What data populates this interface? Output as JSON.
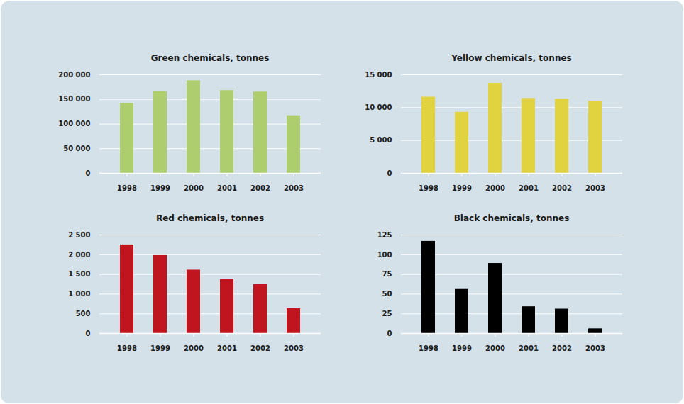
{
  "chart_data": [
    {
      "type": "bar",
      "title": "Green chemicals, tonnes",
      "categories": [
        "1998",
        "1999",
        "2000",
        "2001",
        "2002",
        "2003"
      ],
      "values": [
        142000,
        166000,
        188000,
        168000,
        165000,
        117000
      ],
      "color": "#aecd6e",
      "ylim": [
        0,
        200000
      ],
      "yticks": [
        0,
        {
          "value": 50000,
          "label": "50 000"
        },
        {
          "value": 100000,
          "label": "100 000"
        },
        {
          "value": 150000,
          "label": "150 000"
        },
        {
          "value": 200000,
          "label": "200 000"
        }
      ],
      "grid": true
    },
    {
      "type": "bar",
      "title": "Yellow chemicals, tonnes",
      "categories": [
        "1998",
        "1999",
        "2000",
        "2001",
        "2002",
        "2003"
      ],
      "values": [
        11600,
        9300,
        13700,
        11400,
        11300,
        11000
      ],
      "color": "#e0d33f",
      "ylim": [
        0,
        15000
      ],
      "yticks": [
        0,
        {
          "value": 5000,
          "label": "5 000"
        },
        {
          "value": 10000,
          "label": "10 000"
        },
        {
          "value": 15000,
          "label": "15 000"
        }
      ],
      "grid": true
    },
    {
      "type": "bar",
      "title": "Red chemicals, tonnes",
      "categories": [
        "1998",
        "1999",
        "2000",
        "2001",
        "2002",
        "2003"
      ],
      "values": [
        2250,
        1980,
        1610,
        1370,
        1250,
        630
      ],
      "color": "#c0141f",
      "ylim": [
        0,
        2500
      ],
      "yticks": [
        0,
        500,
        {
          "value": 1000,
          "label": "1 000"
        },
        {
          "value": 1500,
          "label": "1 500"
        },
        {
          "value": 2000,
          "label": "2 000"
        },
        {
          "value": 2500,
          "label": "2 500"
        }
      ],
      "grid": true
    },
    {
      "type": "bar",
      "title": "Black chemicals, tonnes",
      "categories": [
        "1998",
        "1999",
        "2000",
        "2001",
        "2002",
        "2003"
      ],
      "values": [
        117,
        56,
        89,
        34,
        31,
        6
      ],
      "color": "#000000",
      "ylim": [
        0,
        125
      ],
      "yticks": [
        0,
        25,
        50,
        75,
        100,
        125
      ],
      "grid": true
    }
  ]
}
